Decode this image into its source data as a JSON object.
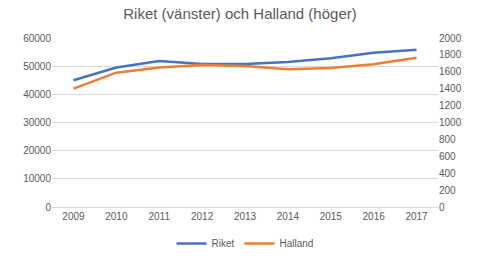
{
  "chart_data": {
    "type": "line",
    "title": "Riket (vänster) och Halland (höger)",
    "categories": [
      "2009",
      "2010",
      "2011",
      "2012",
      "2013",
      "2014",
      "2015",
      "2016",
      "2017"
    ],
    "series": [
      {
        "name": "Riket",
        "color": "#4472c4",
        "axis": "y",
        "values": [
          45000,
          49500,
          51800,
          50800,
          50800,
          51500,
          52800,
          54800,
          55800
        ]
      },
      {
        "name": "Halland",
        "color": "#ed7d31",
        "axis": "y2",
        "values": [
          1400,
          1590,
          1650,
          1680,
          1670,
          1630,
          1645,
          1690,
          1765
        ]
      }
    ],
    "ylim": [
      0,
      60000
    ],
    "yticks": [
      0,
      10000,
      20000,
      30000,
      40000,
      50000,
      60000
    ],
    "y2lim": [
      0,
      2000
    ],
    "y2ticks": [
      0,
      200,
      400,
      600,
      800,
      1000,
      1200,
      1400,
      1600,
      1800,
      2000
    ],
    "grid": true,
    "legend": "bottom"
  }
}
